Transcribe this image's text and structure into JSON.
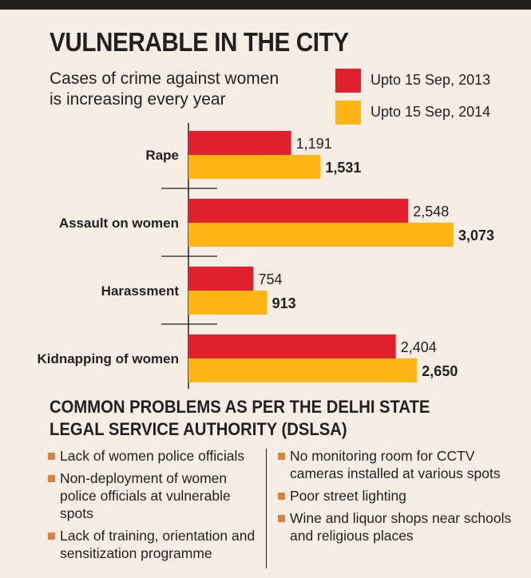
{
  "header": {
    "title": "VULNERABLE IN THE CITY",
    "subtitle": "Cases of crime against women is increasing every year"
  },
  "legend": [
    {
      "label": "Upto 15 Sep, 2013",
      "color": "#e0202c"
    },
    {
      "label": "Upto 15 Sep, 2014",
      "color": "#fdb515"
    }
  ],
  "chart_data": {
    "type": "bar",
    "orientation": "horizontal",
    "title": "VULNERABLE IN THE CITY",
    "subtitle": "Cases of crime against women is increasing every year",
    "categories": [
      "Rape",
      "Assault on women",
      "Harassment",
      "Kidnapping of women"
    ],
    "series": [
      {
        "name": "Upto 15 Sep, 2013",
        "color": "#e0202c",
        "values": [
          1191,
          2548,
          754,
          2404
        ],
        "labels": [
          "1,191",
          "2,548",
          "754",
          "2,404"
        ]
      },
      {
        "name": "Upto 15 Sep, 2014",
        "color": "#fdb515",
        "values": [
          1531,
          3073,
          913,
          2650
        ],
        "labels": [
          "1,531",
          "3,073",
          "913",
          "2,650"
        ]
      }
    ],
    "xlim": [
      0,
      3073
    ],
    "legend_position": "top-right",
    "grid": false
  },
  "problems": {
    "title": "COMMON PROBLEMS AS PER THE DELHI STATE LEGAL SERVICE AUTHORITY (DSLSA)",
    "bullet_color": "#d9823b",
    "left": [
      "Lack of women police officials",
      "Non-deployment of women police officials at vulnerable spots",
      "Lack of training, orientation and sensitization programme"
    ],
    "right": [
      "No monitoring room for CCTV cameras installed at various spots",
      "Poor street lighting",
      "Wine and liquor shops near schools and religious places"
    ]
  }
}
